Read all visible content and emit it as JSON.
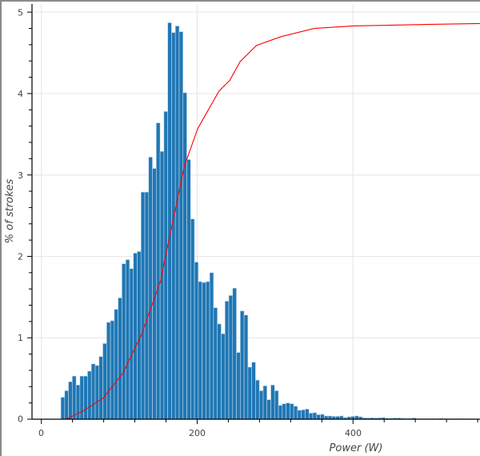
{
  "chart_data": {
    "type": "bar",
    "title": "",
    "xlabel": "Power (W)",
    "ylabel": "% of strokes",
    "xlim": [
      -12,
      563
    ],
    "ylim": [
      0,
      5.1
    ],
    "xticks": [
      "0",
      "200",
      "400"
    ],
    "yticks": [
      "0",
      "1",
      "2",
      "3",
      "4",
      "5"
    ],
    "grid": true,
    "bin_start": 25,
    "bin_width": 4.9,
    "values": [
      0.27,
      0.35,
      0.46,
      0.53,
      0.42,
      0.53,
      0.53,
      0.59,
      0.68,
      0.66,
      0.77,
      0.93,
      1.19,
      1.21,
      1.35,
      1.49,
      1.91,
      1.96,
      1.85,
      2.04,
      2.06,
      2.79,
      2.79,
      3.22,
      3.08,
      3.64,
      3.29,
      3.78,
      4.87,
      4.75,
      4.83,
      4.76,
      4.01,
      3.19,
      2.46,
      1.93,
      1.69,
      1.68,
      1.69,
      1.8,
      1.37,
      1.17,
      1.05,
      1.45,
      1.52,
      1.61,
      0.82,
      1.33,
      1.28,
      0.64,
      0.7,
      0.48,
      0.35,
      0.41,
      0.24,
      0.42,
      0.35,
      0.17,
      0.19,
      0.2,
      0.19,
      0.16,
      0.11,
      0.115,
      0.125,
      0.075,
      0.08,
      0.056,
      0.06,
      0.04,
      0.04,
      0.035,
      0.035,
      0.04,
      0.02,
      0.03,
      0.035,
      0.04,
      0.03,
      0.017,
      0.015,
      0.017,
      0.015,
      0.017,
      0.02,
      0.012,
      0.012,
      0.015,
      0.015,
      0.012,
      0.01,
      0.01,
      0.015,
      0.008,
      0.008,
      0.007,
      0.007,
      0.008,
      0.007,
      0.01,
      0.006,
      0.005,
      0.006,
      0.007,
      0.007,
      0.006,
      0.005,
      0.006
    ],
    "cumulative_line": {
      "x": [
        31.5,
        53.6,
        79.3,
        105,
        129,
        153,
        166.5,
        183.6,
        200.7,
        228,
        241.7,
        255,
        276,
        308,
        350,
        400,
        500,
        563
      ],
      "y": [
        0.0,
        0.1,
        0.26,
        0.57,
        1.05,
        1.7,
        2.33,
        3.11,
        3.57,
        4.03,
        4.16,
        4.39,
        4.59,
        4.7,
        4.8,
        4.83,
        4.85,
        4.86
      ]
    },
    "colors": {
      "bars": "#1f77b4",
      "bar_edge": "#c6dbef",
      "line": "#ff0000",
      "grid": "#e5e5e5"
    }
  }
}
